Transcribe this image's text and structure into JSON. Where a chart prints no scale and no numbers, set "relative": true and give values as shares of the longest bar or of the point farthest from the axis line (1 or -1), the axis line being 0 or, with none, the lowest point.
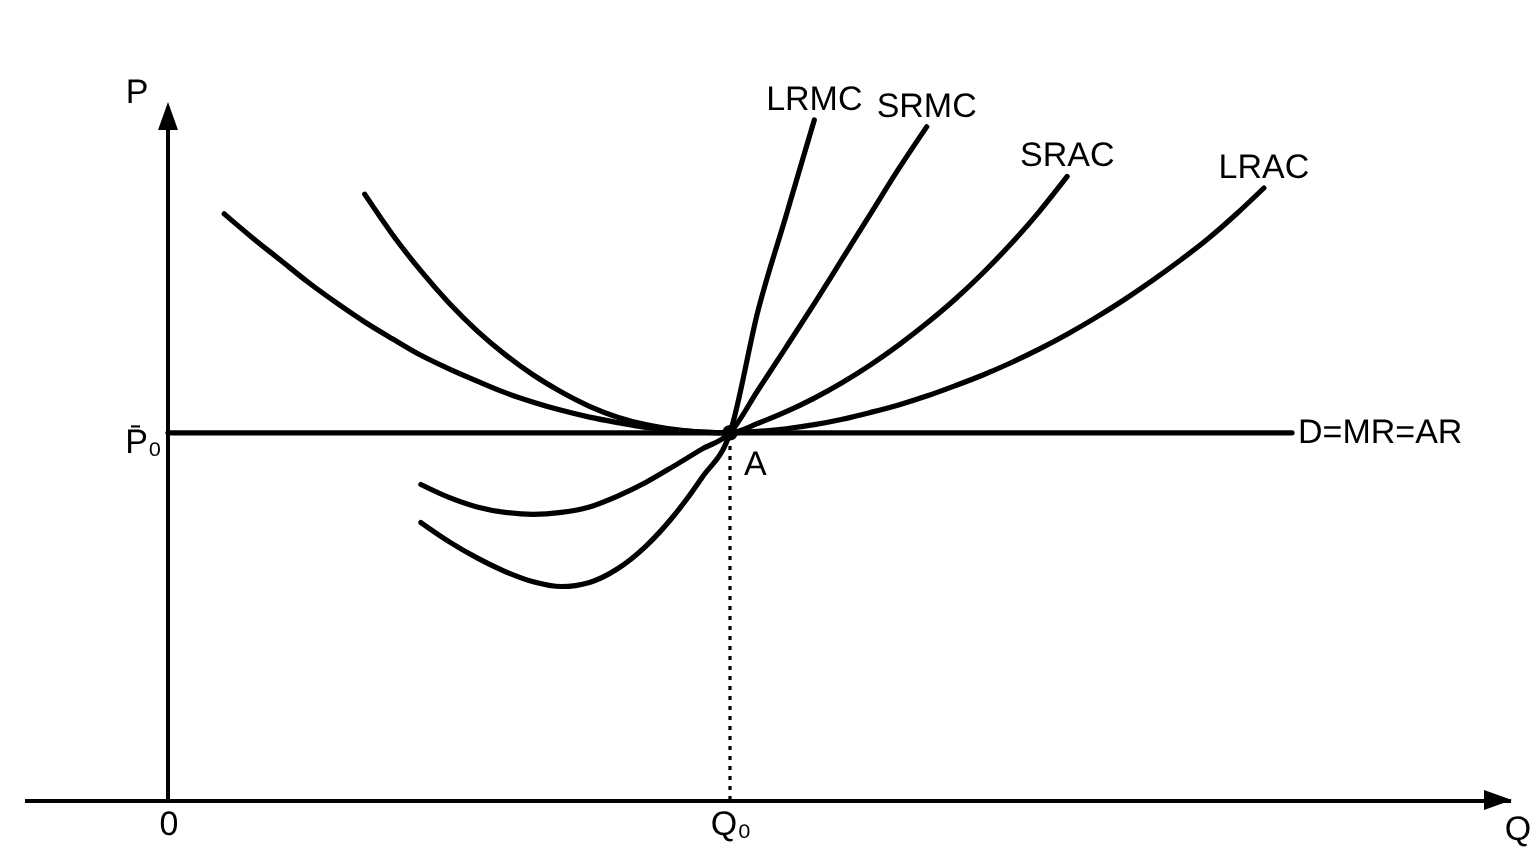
{
  "chart_data": {
    "type": "line",
    "ylabel": "P",
    "relative": true,
    "categories": [
      "0",
      null,
      null,
      null,
      null,
      null,
      null,
      null,
      null,
      null,
      null,
      null,
      null,
      null,
      null,
      null,
      null,
      null,
      null,
      null,
      "Q₀",
      null,
      null,
      null,
      null,
      null,
      null,
      null,
      null,
      null,
      null,
      null,
      null,
      null,
      null,
      null,
      null,
      null,
      null,
      null,
      null
    ],
    "annotations": [
      {
        "text": "P̄₀",
        "x": "0",
        "y": 0.54
      },
      {
        "text": "A",
        "x": "Q₀",
        "y": 0.54
      },
      "Q"
    ],
    "series": [
      {
        "name": "LRMC",
        "color": "#000000",
        "values": [
          null,
          null,
          null,
          null,
          null,
          null,
          null,
          null,
          null,
          0.408,
          0.38,
          0.356,
          0.336,
          0.321,
          0.314,
          0.32,
          0.34,
          0.373,
          0.418,
          0.474,
          0.54,
          0.72,
          0.86,
          1,
          null,
          null,
          null,
          null,
          null,
          null,
          null,
          null,
          null,
          null,
          null,
          null,
          null,
          null,
          null,
          null,
          null
        ]
      },
      {
        "name": "SRMC",
        "color": "#000000",
        "values": [
          null,
          null,
          null,
          null,
          null,
          null,
          null,
          null,
          null,
          0.464,
          0.445,
          0.431,
          0.423,
          0.42,
          0.423,
          0.431,
          0.447,
          0.467,
          0.491,
          0.516,
          0.54,
          0.603,
          0.666,
          0.73,
          0.796,
          0.862,
          0.928,
          0.99,
          null,
          null,
          null,
          null,
          null,
          null,
          null,
          null,
          null,
          null,
          null,
          null,
          null
        ]
      },
      {
        "name": "SRAC",
        "color": "#000000",
        "values": [
          null,
          null,
          null,
          null,
          null,
          null,
          null,
          0.891,
          0.831,
          0.778,
          0.731,
          0.69,
          0.655,
          0.625,
          0.6,
          0.579,
          0.563,
          0.552,
          0.545,
          0.541,
          0.54,
          0.554,
          0.571,
          0.591,
          0.614,
          0.64,
          0.669,
          0.701,
          0.736,
          0.775,
          0.818,
          0.865,
          0.917,
          null,
          null,
          null,
          null,
          null,
          null,
          null,
          null
        ]
      },
      {
        "name": "LRAC",
        "color": "#000000",
        "values": [
          null,
          null,
          0.862,
          0.827,
          0.794,
          0.761,
          0.731,
          0.703,
          0.678,
          0.654,
          0.634,
          0.616,
          0.599,
          0.585,
          0.573,
          0.563,
          0.555,
          0.548,
          0.544,
          0.541,
          0.54,
          0.542,
          0.546,
          0.552,
          0.56,
          0.57,
          0.581,
          0.594,
          0.609,
          0.625,
          0.643,
          0.663,
          0.685,
          0.709,
          0.735,
          0.763,
          0.793,
          0.825,
          0.861,
          0.9,
          null
        ]
      },
      {
        "name": "D=MR=AR",
        "color": "#000000",
        "values": [
          0.54,
          0.54,
          0.54,
          0.54,
          0.54,
          0.54,
          0.54,
          0.54,
          0.54,
          0.54,
          0.54,
          0.54,
          0.54,
          0.54,
          0.54,
          0.54,
          0.54,
          0.54,
          0.54,
          0.54,
          0.54,
          0.54,
          0.54,
          0.54,
          0.54,
          0.54,
          0.54,
          0.54,
          0.54,
          0.54,
          0.54,
          0.54,
          0.54,
          0.54,
          0.54,
          0.54,
          0.54,
          0.54,
          0.54,
          0.54,
          0.54
        ]
      },
      {
        "color": "#000000",
        "x": [
          "Q₀",
          "Q₀"
        ],
        "values": [
          0,
          0.54
        ],
        "line_style": "dotted"
      },
      {
        "type": "scatter",
        "color": "#000000",
        "x": [
          "Q₀"
        ],
        "values": [
          0.54
        ],
        "marker": "circle"
      }
    ]
  }
}
